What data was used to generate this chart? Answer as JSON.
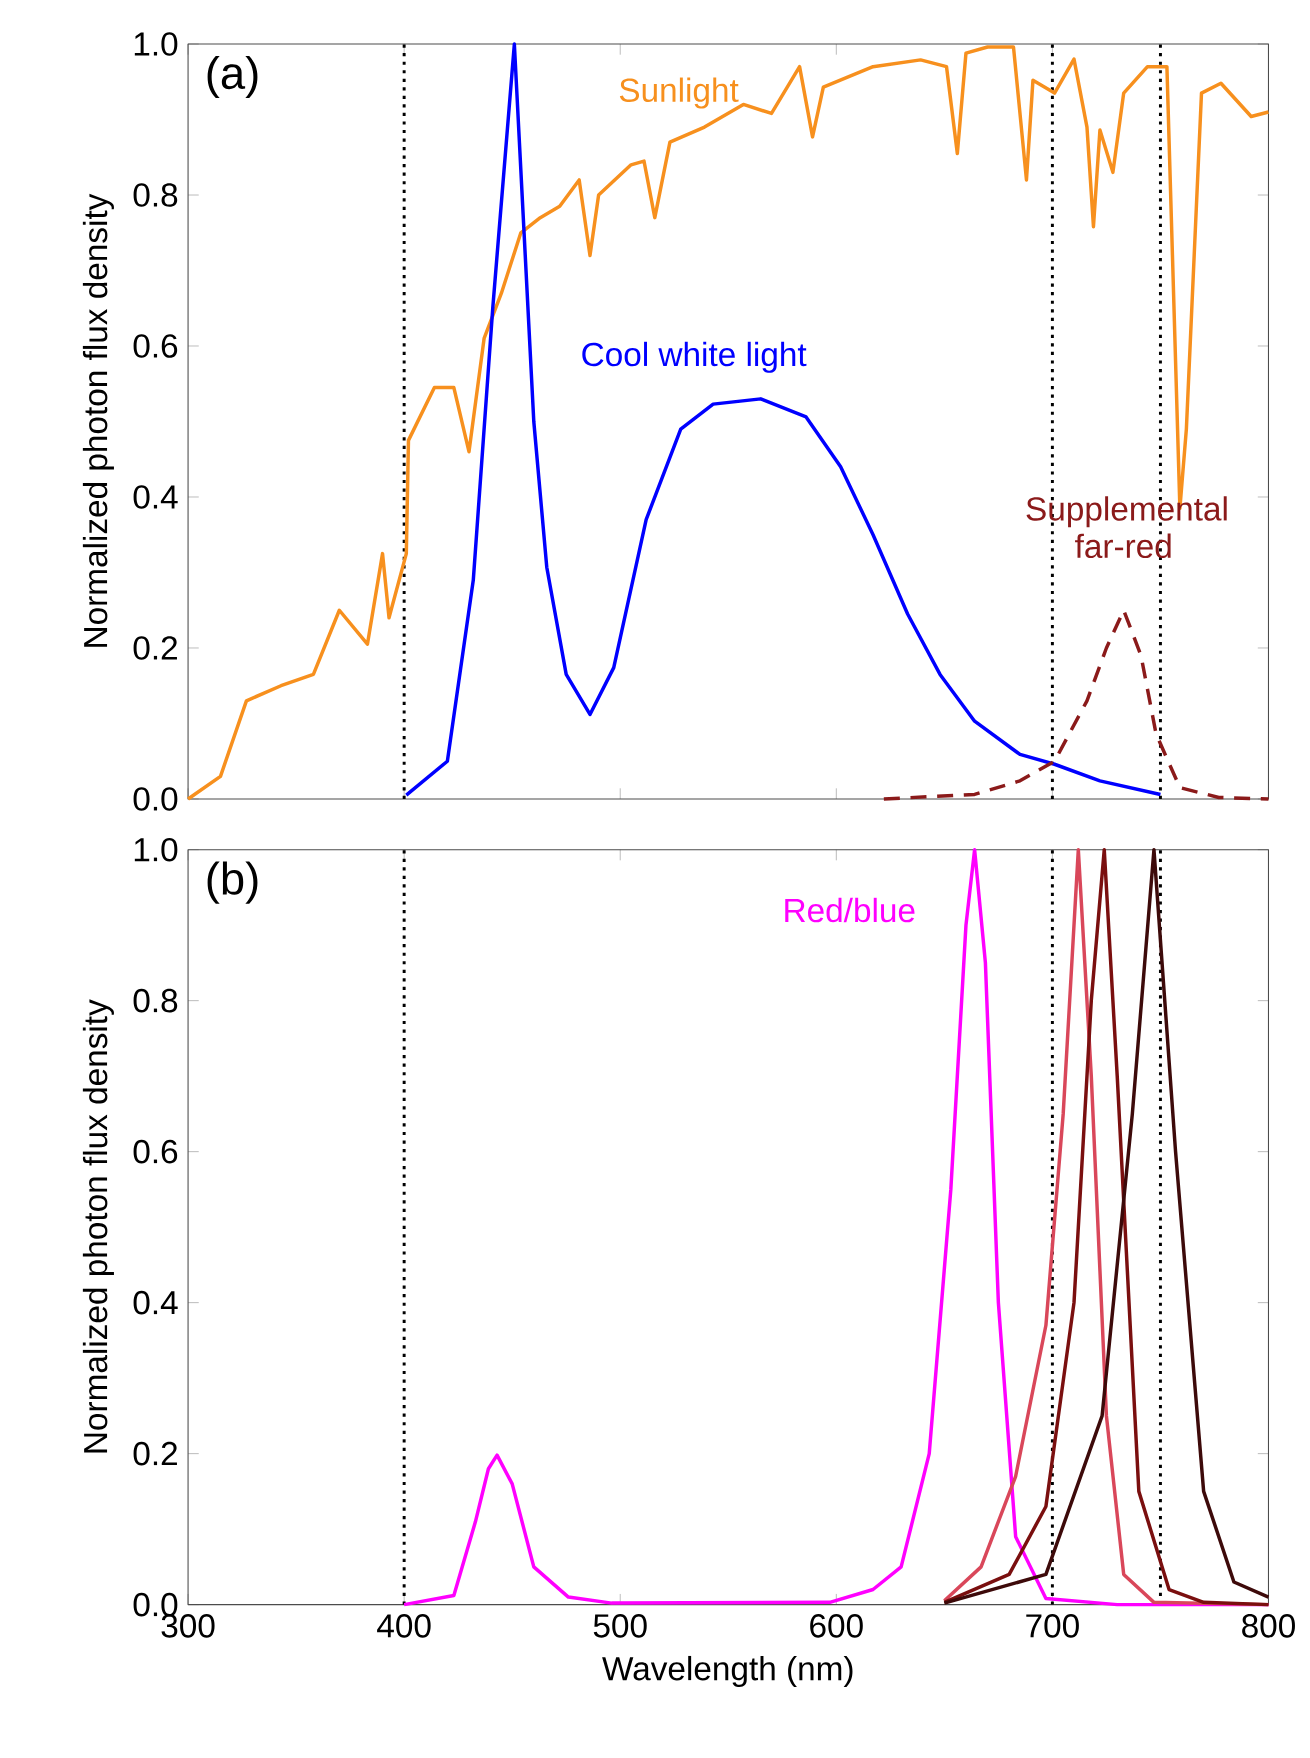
{
  "chart_data": [
    {
      "type": "line",
      "annotations": [
        "(a)"
      ],
      "ylabel": "Normalized photon flux density",
      "xlim": [
        300,
        800
      ],
      "ylim": [
        0,
        1
      ],
      "xticks": [
        300,
        400,
        500,
        600,
        700,
        800
      ],
      "yticks": [
        {
          "value": 0,
          "label": "0.0"
        },
        {
          "value": 0.2,
          "label": "0.2"
        },
        {
          "value": 0.4,
          "label": "0.4"
        },
        {
          "value": 0.6,
          "label": "0.6"
        },
        {
          "value": 0.8,
          "label": "0.8"
        },
        {
          "value": 1,
          "label": "1.0"
        }
      ],
      "tick_labels": "y",
      "marker": "none",
      "line_style": "solid",
      "ref_lines": [
        {
          "axis": "x",
          "value": 400,
          "color": "#000000",
          "line_style": "dotted"
        },
        {
          "axis": "x",
          "value": 700,
          "color": "#000000",
          "line_style": "dotted"
        },
        {
          "axis": "x",
          "value": 750,
          "color": "#000000",
          "line_style": "dotted"
        }
      ],
      "series": [
        {
          "name": "Sunlight",
          "color": "#f7901e",
          "x": [
            300,
            315,
            327,
            343,
            358,
            370,
            383,
            390,
            393,
            401,
            402,
            414,
            423,
            430,
            437,
            445,
            454,
            463,
            472,
            481,
            486,
            490,
            505,
            511,
            516,
            523,
            539,
            557,
            570,
            583,
            589,
            594,
            617,
            639,
            651,
            656,
            660,
            670,
            682,
            688,
            691,
            701,
            710,
            716,
            719,
            722,
            728,
            733,
            744,
            753,
            759,
            762,
            769,
            778,
            792,
            800
          ],
          "values": [
            0.0,
            0.03,
            0.13,
            0.15,
            0.165,
            0.25,
            0.205,
            0.325,
            0.24,
            0.325,
            0.475,
            0.545,
            0.545,
            0.46,
            0.61,
            0.67,
            0.75,
            0.77,
            0.785,
            0.82,
            0.72,
            0.8,
            0.84,
            0.845,
            0.77,
            0.87,
            0.89,
            0.92,
            0.908,
            0.97,
            0.877,
            0.943,
            0.97,
            0.979,
            0.97,
            0.855,
            0.988,
            0.996,
            0.996,
            0.82,
            0.952,
            0.935,
            0.98,
            0.89,
            0.758,
            0.886,
            0.83,
            0.935,
            0.97,
            0.97,
            0.385,
            0.49,
            0.935,
            0.948,
            0.904,
            0.91
          ]
        },
        {
          "name": "Cool white light",
          "color": "#0000ff",
          "x": [
            401,
            420,
            432,
            441,
            451,
            460,
            466,
            475,
            486,
            497,
            512,
            528,
            543,
            565,
            586,
            602,
            617,
            633,
            648,
            664,
            685,
            701,
            722,
            750
          ],
          "values": [
            0.005,
            0.05,
            0.29,
            0.65,
            1.0,
            0.5,
            0.307,
            0.165,
            0.112,
            0.174,
            0.37,
            0.49,
            0.523,
            0.53,
            0.506,
            0.44,
            0.35,
            0.245,
            0.165,
            0.103,
            0.059,
            0.046,
            0.024,
            0.006
          ]
        },
        {
          "name": "Supplemental far-red",
          "color": "#8b1a1a",
          "line_style": "dashed",
          "x": [
            622,
            664,
            685,
            701,
            716,
            725,
            733,
            741,
            748,
            759,
            777,
            800
          ],
          "values": [
            0.0,
            0.006,
            0.024,
            0.05,
            0.13,
            0.2,
            0.25,
            0.19,
            0.086,
            0.015,
            0.002,
            0.0
          ]
        }
      ]
    },
    {
      "type": "line",
      "annotations": [
        "(b)"
      ],
      "xlabel": "Wavelength (nm)",
      "ylabel": "Normalized photon flux density",
      "xlim": [
        300,
        800
      ],
      "ylim": [
        0,
        1
      ],
      "xticks": [
        300,
        400,
        500,
        600,
        700,
        800
      ],
      "yticks": [
        {
          "value": 0,
          "label": "0.0"
        },
        {
          "value": 0.2,
          "label": "0.2"
        },
        {
          "value": 0.4,
          "label": "0.4"
        },
        {
          "value": 0.6,
          "label": "0.6"
        },
        {
          "value": 0.8,
          "label": "0.8"
        },
        {
          "value": 1,
          "label": "1.0"
        }
      ],
      "marker": "none",
      "line_style": "solid",
      "ref_lines": [
        {
          "axis": "x",
          "value": 400,
          "color": "#000000",
          "line_style": "dotted"
        },
        {
          "axis": "x",
          "value": 700,
          "color": "#000000",
          "line_style": "dotted"
        },
        {
          "axis": "x",
          "value": 750,
          "color": "#000000",
          "line_style": "dotted"
        }
      ],
      "series": [
        {
          "name": "Red/blue",
          "color": "#ff00ff",
          "x": [
            400,
            423,
            433,
            439,
            443,
            450,
            460,
            476,
            496,
            597,
            617,
            630,
            643,
            653,
            660,
            664,
            669,
            675,
            683,
            697,
            730,
            800
          ],
          "values": [
            0,
            0.012,
            0.11,
            0.18,
            0.198,
            0.16,
            0.05,
            0.01,
            0.002,
            0.003,
            0.02,
            0.05,
            0.2,
            0.55,
            0.9,
            1.0,
            0.85,
            0.4,
            0.09,
            0.008,
            0.0,
            0.0
          ]
        },
        {
          "color": "#d9475a",
          "x": [
            650,
            667,
            683,
            697,
            705,
            712,
            718,
            725,
            733,
            747,
            800
          ],
          "values": [
            0.005,
            0.05,
            0.17,
            0.37,
            0.65,
            1.0,
            0.7,
            0.25,
            0.04,
            0.003,
            0.0
          ]
        },
        {
          "color": "#7a0f0f",
          "x": [
            650,
            680,
            697,
            710,
            718,
            724,
            730,
            740,
            754,
            770,
            800
          ],
          "values": [
            0.003,
            0.04,
            0.13,
            0.4,
            0.8,
            1.0,
            0.7,
            0.15,
            0.02,
            0.003,
            0.0
          ]
        },
        {
          "color": "#3d0a0a",
          "x": [
            650,
            697,
            723,
            737,
            747,
            757,
            770,
            784,
            800
          ],
          "values": [
            0.002,
            0.04,
            0.25,
            0.65,
            1.0,
            0.6,
            0.15,
            0.03,
            0.01
          ]
        }
      ]
    }
  ]
}
